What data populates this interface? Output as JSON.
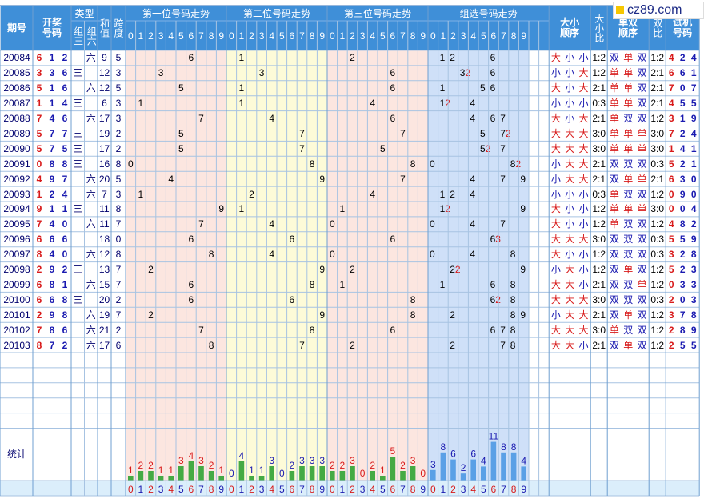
{
  "header": {
    "period_label": "期号",
    "draw_label": "开奖号码",
    "type_label": "类型",
    "type_group3": "组三",
    "type_group6": "组六",
    "sum_label": "和值",
    "span_label": "跨度",
    "pos1_label": "第一位号码走势",
    "pos2_label": "第二位号码走势",
    "pos3_label": "第三位号码走势",
    "combo_label": "组选号码走势",
    "bigsmall_order_label": "大小顺序",
    "bigsmall_ratio_label": "大小比",
    "oddeven_order_label": "单双顺序",
    "oddeven_ratio_label": "双比",
    "trial_label": "试机号码",
    "stats_label": "统计",
    "digits": [
      "0",
      "1",
      "2",
      "3",
      "4",
      "5",
      "6",
      "7",
      "8",
      "9"
    ]
  },
  "logo": {
    "text": "cz89.com",
    "accent_color": "#f6c700"
  },
  "colors": {
    "header_blue": "#3f8fd8",
    "pos1_bg": "#fce6e0",
    "pos2_bg": "#fdfbd8",
    "pos3_bg": "#fce6e0",
    "combo_bg": "#cfe0f8",
    "red": "#d81a1a",
    "blue": "#1a1ab0",
    "green": "#44aa44",
    "grid": "#a7c3e2"
  },
  "chart_data": {
    "type": "table",
    "rows": [
      {
        "period": "20084",
        "draw": [
          "6",
          "1",
          "2"
        ],
        "group3": "",
        "group6": "六",
        "sum": "9",
        "span": "5",
        "pos1": 6,
        "pos2": 1,
        "pos3": 2,
        "combo": [
          {
            "d": 1,
            "t": "1"
          },
          {
            "d": 2,
            "t": "2"
          },
          {
            "d": 6,
            "t": "6"
          }
        ],
        "bs": [
          "大",
          "小",
          "小"
        ],
        "bs_ratio": "1:2",
        "oe": [
          "双",
          "单",
          "双"
        ],
        "oe_ratio": "1:2",
        "trial": [
          "4",
          "2",
          "4"
        ]
      },
      {
        "period": "20085",
        "draw": [
          "3",
          "3",
          "6"
        ],
        "group3": "三",
        "group6": "",
        "sum": "12",
        "span": "3",
        "pos1": 3,
        "pos2": 3,
        "pos3": 6,
        "combo": [
          {
            "d": 3,
            "t": "32"
          },
          {
            "d": 6,
            "t": "6"
          }
        ],
        "bs": [
          "小",
          "小",
          "大"
        ],
        "bs_ratio": "1:2",
        "oe": [
          "单",
          "单",
          "双"
        ],
        "oe_ratio": "2:1",
        "trial": [
          "6",
          "6",
          "1"
        ]
      },
      {
        "period": "20086",
        "draw": [
          "5",
          "1",
          "6"
        ],
        "group3": "",
        "group6": "六",
        "sum": "12",
        "span": "5",
        "pos1": 5,
        "pos2": 1,
        "pos3": 6,
        "combo": [
          {
            "d": 1,
            "t": "1"
          },
          {
            "d": 5,
            "t": "5"
          },
          {
            "d": 6,
            "t": "6"
          }
        ],
        "bs": [
          "大",
          "小",
          "大"
        ],
        "bs_ratio": "2:1",
        "oe": [
          "单",
          "单",
          "双"
        ],
        "oe_ratio": "2:1",
        "trial": [
          "7",
          "0",
          "7"
        ]
      },
      {
        "period": "20087",
        "draw": [
          "1",
          "1",
          "4"
        ],
        "group3": "三",
        "group6": "",
        "sum": "6",
        "span": "3",
        "pos1": 1,
        "pos2": 1,
        "pos3": 4,
        "combo": [
          {
            "d": 1,
            "t": "12"
          },
          {
            "d": 4,
            "t": "4"
          }
        ],
        "bs": [
          "小",
          "小",
          "小"
        ],
        "bs_ratio": "0:3",
        "oe": [
          "单",
          "单",
          "双"
        ],
        "oe_ratio": "2:1",
        "trial": [
          "4",
          "5",
          "5"
        ]
      },
      {
        "period": "20088",
        "draw": [
          "7",
          "4",
          "6"
        ],
        "group3": "",
        "group6": "六",
        "sum": "17",
        "span": "3",
        "pos1": 7,
        "pos2": 4,
        "pos3": 6,
        "combo": [
          {
            "d": 4,
            "t": "4"
          },
          {
            "d": 6,
            "t": "6"
          },
          {
            "d": 7,
            "t": "7"
          }
        ],
        "bs": [
          "大",
          "小",
          "大"
        ],
        "bs_ratio": "2:1",
        "oe": [
          "单",
          "双",
          "双"
        ],
        "oe_ratio": "1:2",
        "trial": [
          "3",
          "1",
          "9"
        ]
      },
      {
        "period": "20089",
        "draw": [
          "5",
          "7",
          "7"
        ],
        "group3": "三",
        "group6": "",
        "sum": "19",
        "span": "2",
        "pos1": 5,
        "pos2": 7,
        "pos3": 7,
        "combo": [
          {
            "d": 5,
            "t": "5"
          },
          {
            "d": 7,
            "t": "72"
          }
        ],
        "bs": [
          "大",
          "大",
          "大"
        ],
        "bs_ratio": "3:0",
        "oe": [
          "单",
          "单",
          "单"
        ],
        "oe_ratio": "3:0",
        "trial": [
          "7",
          "2",
          "4"
        ]
      },
      {
        "period": "20090",
        "draw": [
          "5",
          "7",
          "5"
        ],
        "group3": "三",
        "group6": "",
        "sum": "17",
        "span": "2",
        "pos1": 5,
        "pos2": 7,
        "pos3": 5,
        "combo": [
          {
            "d": 5,
            "t": "52"
          },
          {
            "d": 7,
            "t": "7"
          }
        ],
        "bs": [
          "大",
          "大",
          "大"
        ],
        "bs_ratio": "3:0",
        "oe": [
          "单",
          "单",
          "单"
        ],
        "oe_ratio": "3:0",
        "trial": [
          "1",
          "4",
          "1"
        ]
      },
      {
        "period": "20091",
        "draw": [
          "0",
          "8",
          "8"
        ],
        "group3": "三",
        "group6": "",
        "sum": "16",
        "span": "8",
        "pos1": 0,
        "pos2": 8,
        "pos3": 8,
        "combo": [
          {
            "d": 0,
            "t": "0"
          },
          {
            "d": 8,
            "t": "82"
          }
        ],
        "bs": [
          "小",
          "大",
          "大"
        ],
        "bs_ratio": "2:1",
        "oe": [
          "双",
          "双",
          "双"
        ],
        "oe_ratio": "0:3",
        "trial": [
          "5",
          "2",
          "1"
        ]
      },
      {
        "period": "20092",
        "draw": [
          "4",
          "9",
          "7"
        ],
        "group3": "",
        "group6": "六",
        "sum": "20",
        "span": "5",
        "pos1": 4,
        "pos2": 9,
        "pos3": 7,
        "combo": [
          {
            "d": 4,
            "t": "4"
          },
          {
            "d": 7,
            "t": "7"
          },
          {
            "d": 9,
            "t": "9"
          }
        ],
        "bs": [
          "小",
          "大",
          "大"
        ],
        "bs_ratio": "2:1",
        "oe": [
          "双",
          "单",
          "单"
        ],
        "oe_ratio": "2:1",
        "trial": [
          "6",
          "3",
          "0"
        ]
      },
      {
        "period": "20093",
        "draw": [
          "1",
          "2",
          "4"
        ],
        "group3": "",
        "group6": "六",
        "sum": "7",
        "span": "3",
        "pos1": 1,
        "pos2": 2,
        "pos3": 4,
        "combo": [
          {
            "d": 1,
            "t": "1"
          },
          {
            "d": 2,
            "t": "2"
          },
          {
            "d": 4,
            "t": "4"
          }
        ],
        "bs": [
          "小",
          "小",
          "小"
        ],
        "bs_ratio": "0:3",
        "oe": [
          "单",
          "双",
          "双"
        ],
        "oe_ratio": "1:2",
        "trial": [
          "0",
          "9",
          "0"
        ]
      },
      {
        "period": "20094",
        "draw": [
          "9",
          "1",
          "1"
        ],
        "group3": "三",
        "group6": "",
        "sum": "11",
        "span": "8",
        "pos1": 9,
        "pos2": 1,
        "pos3": 1,
        "combo": [
          {
            "d": 1,
            "t": "12"
          },
          {
            "d": 9,
            "t": "9"
          }
        ],
        "bs": [
          "大",
          "小",
          "小"
        ],
        "bs_ratio": "1:2",
        "oe": [
          "单",
          "单",
          "单"
        ],
        "oe_ratio": "3:0",
        "trial": [
          "0",
          "0",
          "4"
        ]
      },
      {
        "period": "20095",
        "draw": [
          "7",
          "4",
          "0"
        ],
        "group3": "",
        "group6": "六",
        "sum": "11",
        "span": "7",
        "pos1": 7,
        "pos2": 4,
        "pos3": 0,
        "combo": [
          {
            "d": 0,
            "t": "0"
          },
          {
            "d": 4,
            "t": "4"
          },
          {
            "d": 7,
            "t": "7"
          }
        ],
        "bs": [
          "大",
          "小",
          "小"
        ],
        "bs_ratio": "1:2",
        "oe": [
          "单",
          "双",
          "双"
        ],
        "oe_ratio": "1:2",
        "trial": [
          "4",
          "8",
          "2"
        ]
      },
      {
        "period": "20096",
        "draw": [
          "6",
          "6",
          "6"
        ],
        "group3": "",
        "group6": "",
        "sum": "18",
        "span": "0",
        "pos1": 6,
        "pos2": 6,
        "pos3": 6,
        "combo": [
          {
            "d": 6,
            "t": "63"
          }
        ],
        "bs": [
          "大",
          "大",
          "大"
        ],
        "bs_ratio": "3:0",
        "oe": [
          "双",
          "双",
          "双"
        ],
        "oe_ratio": "0:3",
        "trial": [
          "5",
          "5",
          "9"
        ]
      },
      {
        "period": "20097",
        "draw": [
          "8",
          "4",
          "0"
        ],
        "group3": "",
        "group6": "六",
        "sum": "12",
        "span": "8",
        "pos1": 8,
        "pos2": 4,
        "pos3": 0,
        "combo": [
          {
            "d": 0,
            "t": "0"
          },
          {
            "d": 4,
            "t": "4"
          },
          {
            "d": 8,
            "t": "8"
          }
        ],
        "bs": [
          "大",
          "小",
          "小"
        ],
        "bs_ratio": "1:2",
        "oe": [
          "双",
          "双",
          "双"
        ],
        "oe_ratio": "0:3",
        "trial": [
          "3",
          "2",
          "8"
        ]
      },
      {
        "period": "20098",
        "draw": [
          "2",
          "9",
          "2"
        ],
        "group3": "三",
        "group6": "",
        "sum": "13",
        "span": "7",
        "pos1": 2,
        "pos2": 9,
        "pos3": 2,
        "combo": [
          {
            "d": 2,
            "t": "22"
          },
          {
            "d": 9,
            "t": "9"
          }
        ],
        "bs": [
          "小",
          "大",
          "小"
        ],
        "bs_ratio": "1:2",
        "oe": [
          "双",
          "单",
          "双"
        ],
        "oe_ratio": "1:2",
        "trial": [
          "5",
          "2",
          "3"
        ]
      },
      {
        "period": "20099",
        "draw": [
          "6",
          "8",
          "1"
        ],
        "group3": "",
        "group6": "六",
        "sum": "15",
        "span": "7",
        "pos1": 6,
        "pos2": 8,
        "pos3": 1,
        "combo": [
          {
            "d": 1,
            "t": "1"
          },
          {
            "d": 6,
            "t": "6"
          },
          {
            "d": 8,
            "t": "8"
          }
        ],
        "bs": [
          "大",
          "大",
          "小"
        ],
        "bs_ratio": "2:1",
        "oe": [
          "双",
          "双",
          "单"
        ],
        "oe_ratio": "1:2",
        "trial": [
          "0",
          "3",
          "3"
        ]
      },
      {
        "period": "20100",
        "draw": [
          "6",
          "6",
          "8"
        ],
        "group3": "三",
        "group6": "",
        "sum": "20",
        "span": "2",
        "pos1": 6,
        "pos2": 6,
        "pos3": 8,
        "combo": [
          {
            "d": 6,
            "t": "62"
          },
          {
            "d": 8,
            "t": "8"
          }
        ],
        "bs": [
          "大",
          "大",
          "大"
        ],
        "bs_ratio": "3:0",
        "oe": [
          "双",
          "双",
          "双"
        ],
        "oe_ratio": "0:3",
        "trial": [
          "2",
          "0",
          "3"
        ]
      },
      {
        "period": "20101",
        "draw": [
          "2",
          "9",
          "8"
        ],
        "group3": "",
        "group6": "六",
        "sum": "19",
        "span": "7",
        "pos1": 2,
        "pos2": 9,
        "pos3": 8,
        "combo": [
          {
            "d": 2,
            "t": "2"
          },
          {
            "d": 8,
            "t": "8"
          },
          {
            "d": 9,
            "t": "9"
          }
        ],
        "bs": [
          "小",
          "大",
          "大"
        ],
        "bs_ratio": "2:1",
        "oe": [
          "双",
          "单",
          "双"
        ],
        "oe_ratio": "1:2",
        "trial": [
          "3",
          "7",
          "8"
        ]
      },
      {
        "period": "20102",
        "draw": [
          "7",
          "8",
          "6"
        ],
        "group3": "",
        "group6": "六",
        "sum": "21",
        "span": "2",
        "pos1": 7,
        "pos2": 8,
        "pos3": 6,
        "combo": [
          {
            "d": 6,
            "t": "6"
          },
          {
            "d": 7,
            "t": "7"
          },
          {
            "d": 8,
            "t": "8"
          }
        ],
        "bs": [
          "大",
          "大",
          "大"
        ],
        "bs_ratio": "3:0",
        "oe": [
          "单",
          "双",
          "双"
        ],
        "oe_ratio": "1:2",
        "trial": [
          "2",
          "8",
          "9"
        ]
      },
      {
        "period": "20103",
        "draw": [
          "8",
          "7",
          "2"
        ],
        "group3": "",
        "group6": "六",
        "sum": "17",
        "span": "6",
        "pos1": 8,
        "pos2": 7,
        "pos3": 2,
        "combo": [
          {
            "d": 2,
            "t": "2"
          },
          {
            "d": 7,
            "t": "7"
          },
          {
            "d": 8,
            "t": "8"
          }
        ],
        "bs": [
          "大",
          "大",
          "小"
        ],
        "bs_ratio": "2:1",
        "oe": [
          "双",
          "单",
          "双"
        ],
        "oe_ratio": "1:2",
        "trial": [
          "2",
          "5",
          "5"
        ]
      }
    ],
    "stats": {
      "pos1": [
        1,
        2,
        2,
        1,
        1,
        3,
        4,
        3,
        2,
        1
      ],
      "pos2": [
        0,
        4,
        1,
        1,
        3,
        0,
        2,
        3,
        3,
        3
      ],
      "pos3": [
        2,
        2,
        3,
        0,
        2,
        1,
        5,
        2,
        3,
        0
      ],
      "combo": [
        3,
        8,
        6,
        2,
        6,
        4,
        11,
        8,
        8,
        4
      ]
    }
  }
}
